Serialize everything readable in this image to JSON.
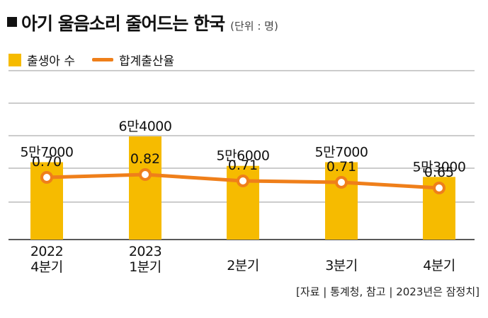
{
  "header": {
    "title": "아기 울음소리 줄어드는 한국",
    "unit": "(단위 : 명)"
  },
  "legend": {
    "bar_label": "출생아 수",
    "line_label": "합계출산율"
  },
  "source": "[자료 | 통계청, 참고 | 2023년은 잠정치]",
  "colors": {
    "bar": "#f6bb00",
    "line": "#ef7f1a",
    "grid": "#9a9a9a"
  },
  "chart_data": {
    "type": "bar",
    "categories": [
      [
        "2022",
        "4분기"
      ],
      [
        "2023",
        "1분기"
      ],
      [
        "2분기"
      ],
      [
        "3분기"
      ],
      [
        "4분기"
      ]
    ],
    "series": [
      {
        "name": "출생아 수",
        "type": "bar",
        "values": [
          57000,
          64000,
          56000,
          57000,
          53000
        ],
        "value_labels": [
          "5만7000",
          "6만4000",
          "5만6000",
          "5만7000",
          "5만3000"
        ]
      },
      {
        "name": "합계출산율",
        "type": "line",
        "values": [
          0.7,
          0.82,
          0.71,
          0.71,
          0.65
        ],
        "value_labels": [
          "0.70",
          "0.82",
          "0.71",
          "0.71",
          "0.65"
        ]
      }
    ],
    "grid": true,
    "legend_position": "top-left"
  }
}
